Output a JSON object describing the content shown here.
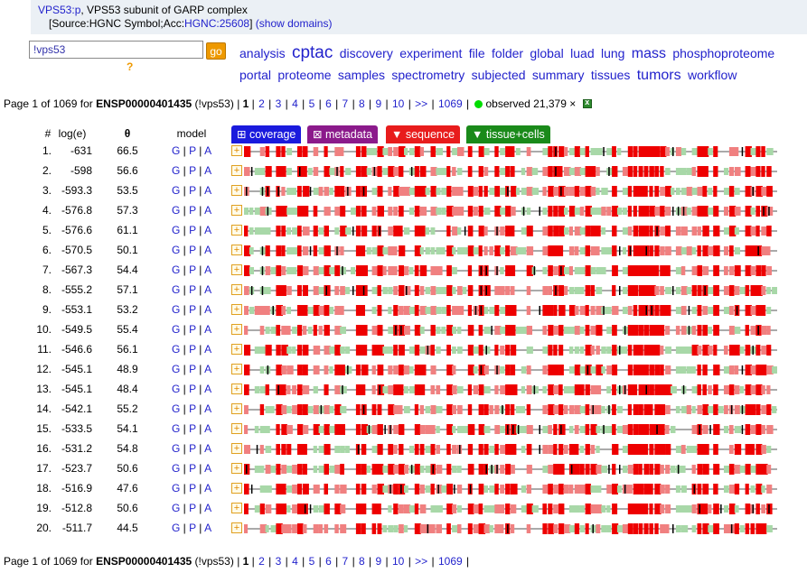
{
  "header": {
    "gene_link": "VPS53:p",
    "gene_desc": ", VPS53 subunit of GARP complex",
    "source_prefix": "[Source:HGNC Symbol;Acc:",
    "hgnc_link": "HGNC:25608",
    "source_suffix": "]",
    "show_domains": "(show domains)"
  },
  "search": {
    "value": "!vps53",
    "go_label": "go",
    "help": "?"
  },
  "tags": [
    {
      "label": "analysis",
      "size": 14
    },
    {
      "label": "cptac",
      "size": 19
    },
    {
      "label": "discovery",
      "size": 14
    },
    {
      "label": "experiment",
      "size": 14
    },
    {
      "label": "file",
      "size": 14
    },
    {
      "label": "folder",
      "size": 14
    },
    {
      "label": "global",
      "size": 14
    },
    {
      "label": "luad",
      "size": 14
    },
    {
      "label": "lung",
      "size": 14
    },
    {
      "label": "mass",
      "size": 16
    },
    {
      "label": "phosphoproteome",
      "size": 14
    },
    {
      "label": "portal",
      "size": 14
    },
    {
      "label": "proteome",
      "size": 14
    },
    {
      "label": "samples",
      "size": 14
    },
    {
      "label": "spectrometry",
      "size": 14
    },
    {
      "label": "subjected",
      "size": 14
    },
    {
      "label": "summary",
      "size": 14
    },
    {
      "label": "tissues",
      "size": 14
    },
    {
      "label": "tumors",
      "size": 16
    },
    {
      "label": "workflow",
      "size": 14
    }
  ],
  "pager": {
    "prefix": "Page 1 of 1069 for ",
    "protein": "ENSP00000401435",
    "query": " (!vps53) | ",
    "current": "1",
    "pages": [
      "2",
      "3",
      "4",
      "5",
      "6",
      "7",
      "8",
      "9",
      "10"
    ],
    "next": ">>",
    "last": "1069",
    "observed": "observed 21,379 ×"
  },
  "columns": {
    "num": "#",
    "loge": "log(e)",
    "theta": "θ",
    "model": "model"
  },
  "tabs": [
    {
      "label": "⊞ coverage",
      "color": "#1a1add"
    },
    {
      "label": "⊠ metadata",
      "color": "#8b1a8b"
    },
    {
      "label": "▼ sequence",
      "color": "#e81c1c"
    },
    {
      "label": "▼ tissue+cells",
      "color": "#1a8a1a"
    }
  ],
  "model_links": [
    "G",
    "P",
    "A"
  ],
  "rows": [
    {
      "num": "1.",
      "loge": "-631",
      "theta": "66.5"
    },
    {
      "num": "2.",
      "loge": "-598",
      "theta": "56.6"
    },
    {
      "num": "3.",
      "loge": "-593.3",
      "theta": "53.5"
    },
    {
      "num": "4.",
      "loge": "-576.8",
      "theta": "57.3"
    },
    {
      "num": "5.",
      "loge": "-576.6",
      "theta": "61.1"
    },
    {
      "num": "6.",
      "loge": "-570.5",
      "theta": "50.1"
    },
    {
      "num": "7.",
      "loge": "-567.3",
      "theta": "54.4"
    },
    {
      "num": "8.",
      "loge": "-555.2",
      "theta": "57.1"
    },
    {
      "num": "9.",
      "loge": "-553.1",
      "theta": "53.2"
    },
    {
      "num": "10.",
      "loge": "-549.5",
      "theta": "55.4"
    },
    {
      "num": "11.",
      "loge": "-546.6",
      "theta": "56.1"
    },
    {
      "num": "12.",
      "loge": "-545.1",
      "theta": "48.9"
    },
    {
      "num": "13.",
      "loge": "-545.1",
      "theta": "48.4"
    },
    {
      "num": "14.",
      "loge": "-542.1",
      "theta": "55.2"
    },
    {
      "num": "15.",
      "loge": "-533.5",
      "theta": "54.1"
    },
    {
      "num": "16.",
      "loge": "-531.2",
      "theta": "54.8"
    },
    {
      "num": "17.",
      "loge": "-523.7",
      "theta": "50.6"
    },
    {
      "num": "18.",
      "loge": "-516.9",
      "theta": "47.6"
    },
    {
      "num": "19.",
      "loge": "-512.8",
      "theta": "50.6"
    },
    {
      "num": "20.",
      "loge": "-511.7",
      "theta": "44.5"
    }
  ],
  "colors": {
    "link": "#2222cc",
    "coverage_high": "#ee0000",
    "coverage_mid": "#f08080",
    "coverage_low": "#a8d8a8",
    "line": "#555555"
  }
}
